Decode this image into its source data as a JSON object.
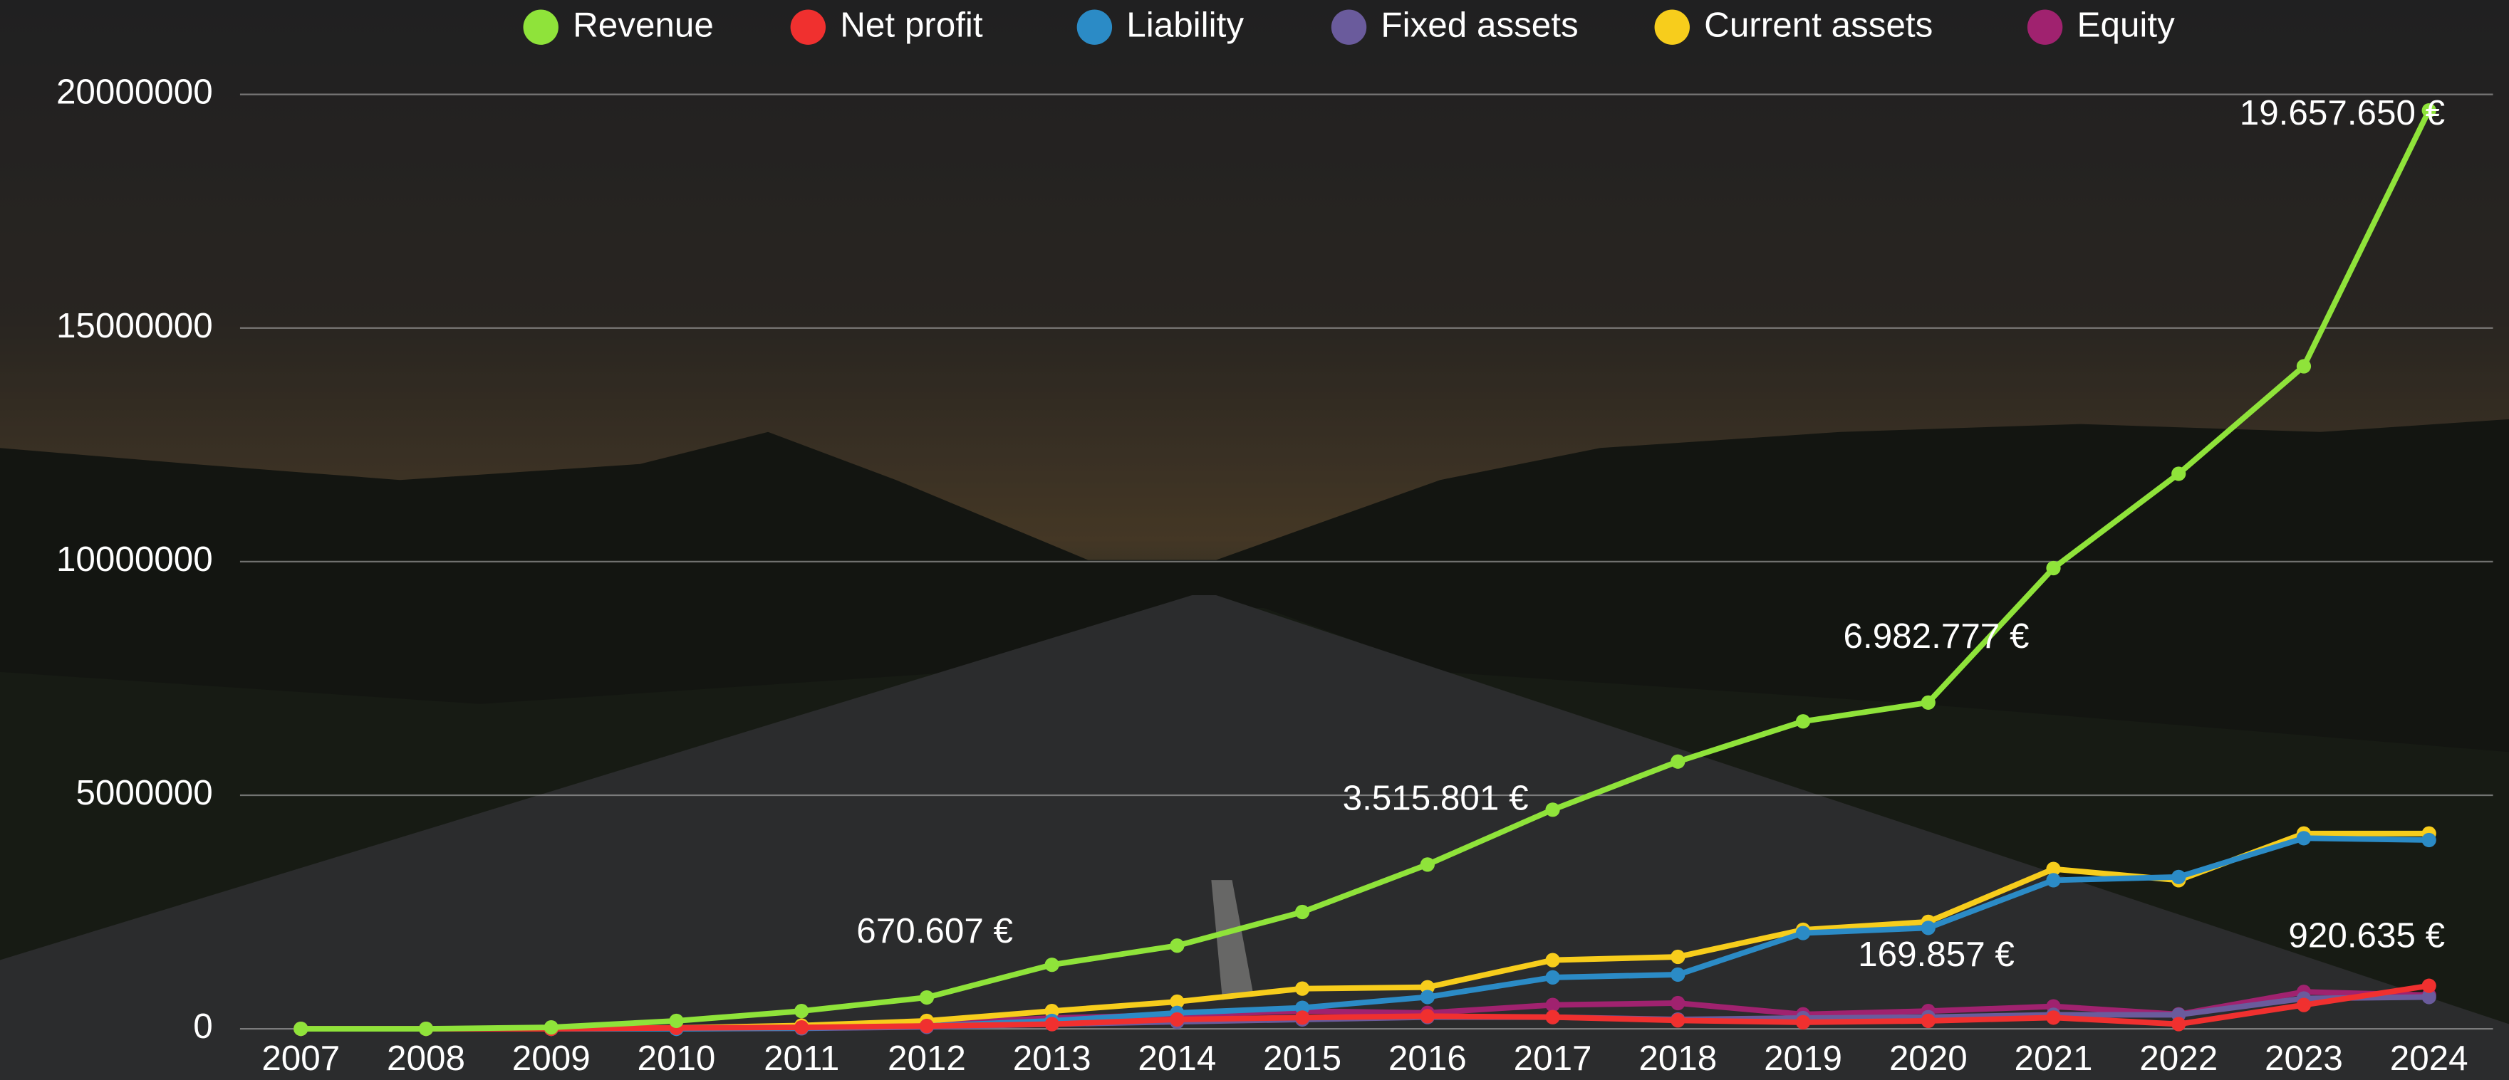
{
  "chart_data": {
    "type": "line",
    "categories": [
      "2007",
      "2008",
      "2009",
      "2010",
      "2011",
      "2012",
      "2013",
      "2014",
      "2015",
      "2016",
      "2017",
      "2018",
      "2019",
      "2020",
      "2021",
      "2022",
      "2023",
      "2024"
    ],
    "series": [
      {
        "name": "Revenue",
        "color": "#8fe33a",
        "values": [
          0,
          0,
          30000,
          170000,
          380000,
          670607,
          1370000,
          1780000,
          2500000,
          3515801,
          4690000,
          5720000,
          6580000,
          6982777,
          9860000,
          11880000,
          14180000,
          19657650
        ],
        "value_labels": [
          null,
          null,
          null,
          null,
          null,
          "670.607 €",
          null,
          null,
          null,
          "3.515.801 €",
          null,
          null,
          null,
          "6.982.777 €",
          null,
          null,
          null,
          "19.657.650 €"
        ]
      },
      {
        "name": "Net profit",
        "color": "#f0302f",
        "values": [
          0,
          0,
          0,
          20000,
          30000,
          60000,
          100000,
          200000,
          240000,
          270000,
          250000,
          180000,
          140000,
          169857,
          240000,
          100000,
          510000,
          920635
        ],
        "value_labels": [
          null,
          null,
          null,
          null,
          null,
          null,
          null,
          null,
          null,
          null,
          null,
          null,
          null,
          "169.857 €",
          null,
          null,
          null,
          "920.635 €"
        ]
      },
      {
        "name": "Liability",
        "color": "#2b8bc6",
        "values": [
          0,
          0,
          0,
          0,
          20000,
          60000,
          170000,
          340000,
          450000,
          680000,
          1100000,
          1160000,
          2050000,
          2160000,
          3180000,
          3250000,
          4080000,
          4040000
        ]
      },
      {
        "name": "Fixed assets",
        "color": "#6a5b9c",
        "values": [
          0,
          0,
          0,
          0,
          10000,
          40000,
          100000,
          150000,
          200000,
          250000,
          250000,
          200000,
          230000,
          250000,
          300000,
          300000,
          650000,
          680000
        ]
      },
      {
        "name": "Current assets",
        "color": "#f7cd1c",
        "values": [
          0,
          0,
          0,
          20000,
          70000,
          170000,
          380000,
          580000,
          860000,
          890000,
          1470000,
          1540000,
          2120000,
          2290000,
          3420000,
          3180000,
          4180000,
          4180000
        ]
      },
      {
        "name": "Equity",
        "color": "#a0226f",
        "values": [
          0,
          0,
          0,
          10000,
          20000,
          100000,
          230000,
          300000,
          380000,
          340000,
          510000,
          550000,
          310000,
          380000,
          480000,
          310000,
          790000,
          720000
        ]
      }
    ],
    "ylim": [
      0,
      20000000
    ],
    "yticks": [
      0,
      5000000,
      10000000,
      15000000,
      20000000
    ],
    "grid": true,
    "legend": "top"
  }
}
